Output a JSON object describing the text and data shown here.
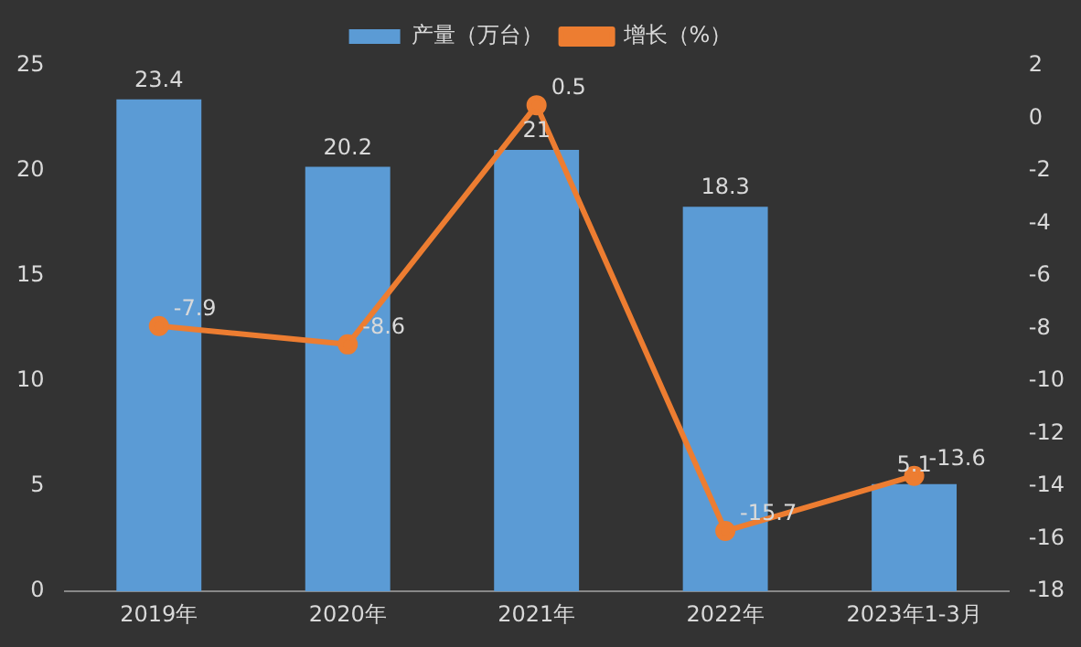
{
  "chart_data": {
    "type": "bar",
    "categories": [
      "2019年",
      "2020年",
      "2021年",
      "2022年",
      "2023年1-3月"
    ],
    "series": [
      {
        "name": "产量（万台）",
        "color": "#5b9bd5",
        "values": [
          23.4,
          20.2,
          21,
          18.3,
          5.1
        ]
      },
      {
        "name": "增长（%）",
        "type": "line",
        "axis": "y2",
        "color": "#ed7d31",
        "values": [
          -7.9,
          -8.6,
          0.5,
          -15.7,
          -13.6
        ]
      }
    ],
    "ylim": [
      0,
      25
    ],
    "yticks": [
      0,
      5,
      10,
      15,
      20,
      25
    ],
    "y2lim": [
      -18,
      2
    ],
    "y2ticks": [
      -18,
      -16,
      -14,
      -12,
      -10,
      -8,
      -6,
      -4,
      -2,
      0,
      2
    ],
    "legend": "top",
    "grid": false,
    "marker": "circle",
    "data_labels": true
  }
}
